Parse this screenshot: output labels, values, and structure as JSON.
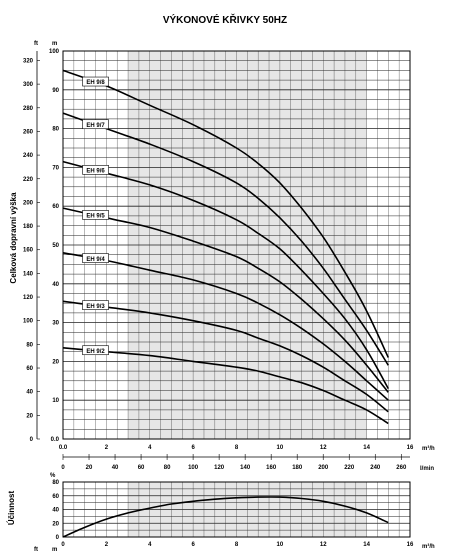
{
  "chart_data": [
    {
      "type": "line",
      "title": "VÝKONOVÉ KŘIVKY 50HZ",
      "ylabel": "Celková dopravní výška",
      "xlabel": "",
      "y_unit_primary": "m",
      "y_unit_secondary": "ft",
      "x_unit_primary": "m³/h",
      "x_unit_secondary": "l/min",
      "xlim": [
        0,
        16
      ],
      "ylim": [
        0,
        100
      ],
      "ylim_ft": [
        0,
        328
      ],
      "xlim_lmin": [
        0,
        266.7
      ],
      "x_ticks": [
        "0.0",
        "2",
        "4",
        "6",
        "8",
        "10",
        "12",
        "14",
        "16"
      ],
      "y_ticks": [
        "0.0",
        "10",
        "20",
        "30",
        "40",
        "50",
        "60",
        "70",
        "80",
        "90",
        "100"
      ],
      "ft_ticks": [
        "0",
        "20",
        "40",
        "60",
        "80",
        "100",
        "120",
        "140",
        "160",
        "180",
        "200",
        "220",
        "240",
        "260",
        "280",
        "300",
        "320"
      ],
      "lmin_ticks": [
        "0",
        "20",
        "40",
        "60",
        "80",
        "100",
        "120",
        "140",
        "160",
        "180",
        "200",
        "220",
        "240",
        "260"
      ],
      "lmin_unit_label": "l/min",
      "shaded_range_x": [
        3,
        14
      ],
      "grid": true,
      "series": [
        {
          "name": "EH 9/8",
          "x": [
            0,
            2,
            4,
            6,
            8,
            9,
            10,
            11,
            12,
            13,
            14,
            15
          ],
          "values": [
            95,
            91,
            86,
            81,
            75,
            71,
            66,
            59.5,
            52,
            43,
            33,
            21
          ]
        },
        {
          "name": "EH 9/7",
          "x": [
            0,
            2,
            4,
            6,
            8,
            9,
            10,
            11,
            12,
            13,
            14,
            15
          ],
          "values": [
            84,
            80,
            76,
            71.5,
            66,
            62,
            57,
            51,
            44,
            36,
            28,
            19
          ]
        },
        {
          "name": "EH 9/6",
          "x": [
            0,
            2,
            4,
            6,
            8,
            9,
            10,
            11,
            12,
            13,
            14,
            15
          ],
          "values": [
            71.5,
            68.5,
            65.5,
            61.5,
            56.5,
            53,
            49,
            43.5,
            37.5,
            31,
            23,
            13
          ]
        },
        {
          "name": "EH 9/5",
          "x": [
            0,
            2,
            4,
            6,
            8,
            9,
            10,
            11,
            12,
            13,
            14,
            15
          ],
          "values": [
            59.5,
            57,
            54.5,
            51,
            47,
            44,
            40.5,
            36,
            31,
            25.5,
            19,
            12
          ]
        },
        {
          "name": "EH 9/4",
          "x": [
            0,
            2,
            4,
            6,
            8,
            9,
            10,
            11,
            12,
            13,
            14,
            15
          ],
          "values": [
            48,
            46,
            43.5,
            41,
            37.5,
            35,
            32,
            28.5,
            24.5,
            20,
            15,
            10
          ]
        },
        {
          "name": "EH 9/3",
          "x": [
            0,
            2,
            4,
            6,
            8,
            9,
            10,
            11,
            12,
            13,
            14,
            15
          ],
          "values": [
            35.5,
            34,
            32.5,
            30.5,
            28,
            26,
            24,
            21.5,
            18.5,
            15,
            11.5,
            7
          ]
        },
        {
          "name": "EH 9/2",
          "x": [
            0,
            2,
            4,
            6,
            8,
            9,
            10,
            11,
            12,
            13,
            14,
            15
          ],
          "values": [
            23.5,
            22.5,
            21.5,
            20,
            18.5,
            17.5,
            16,
            14.5,
            12.5,
            10,
            7.5,
            4
          ]
        }
      ]
    },
    {
      "type": "line",
      "title": "",
      "ylabel": "Účinnost",
      "xlabel": "",
      "y_unit_primary": "%",
      "x_unit_primary": "m³/h",
      "xlim": [
        0,
        16
      ],
      "ylim": [
        0,
        80
      ],
      "x_ticks": [
        "0",
        "2",
        "4",
        "6",
        "8",
        "10",
        "12",
        "14",
        "16"
      ],
      "y_ticks": [
        "0",
        "20",
        "40",
        "60",
        "80"
      ],
      "shaded_range_x": [
        3,
        14
      ],
      "grid": true,
      "series": [
        {
          "x": [
            0,
            1,
            2,
            3,
            4,
            5,
            6,
            7,
            8,
            9,
            10,
            11,
            12,
            13,
            14,
            15
          ],
          "values": [
            0,
            14,
            26,
            35,
            42,
            48,
            52,
            55,
            57,
            58,
            58,
            56,
            52,
            45,
            35,
            21
          ]
        }
      ]
    }
  ],
  "cutoff_units": {
    "left": "ft",
    "right": "m"
  }
}
